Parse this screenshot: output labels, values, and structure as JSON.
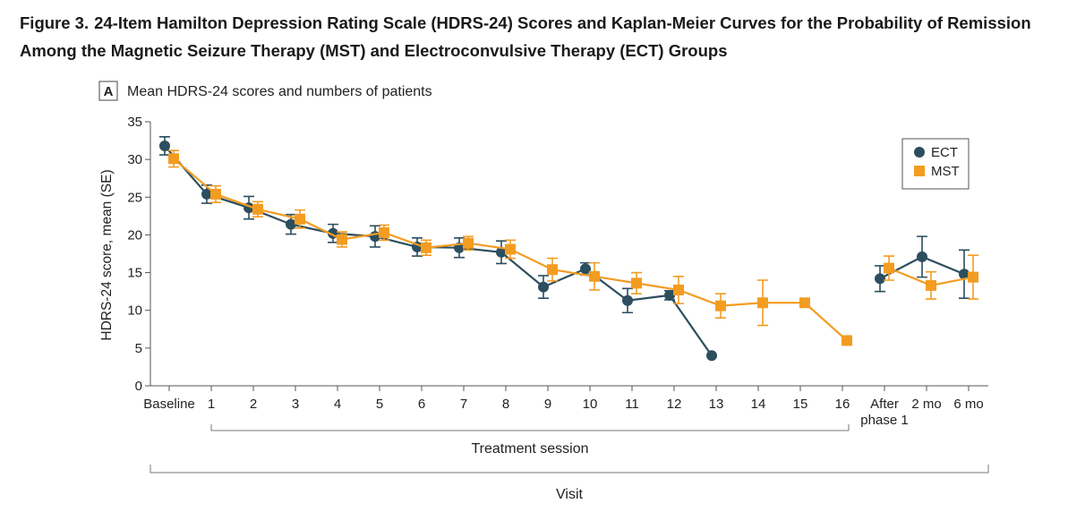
{
  "figure": {
    "prefix": "Figure 3.",
    "title": "24-Item Hamilton Depression Rating Scale (HDRS-24) Scores and Kaplan-Meier Curves for the Probability of Remission Among the Magnetic Seizure Therapy (MST) and Electroconvulsive Therapy (ECT) Groups"
  },
  "chart_data": {
    "type": "line",
    "panel": "A",
    "title": "Mean HDRS-24 scores and numbers of patients",
    "ylabel": "HDRS-24 score, mean (SE)",
    "xlabel": "Visit",
    "ylim": [
      0,
      35
    ],
    "yticks": [
      0,
      5,
      10,
      15,
      20,
      25,
      30,
      35
    ],
    "categories": [
      "Baseline",
      "1",
      "2",
      "3",
      "4",
      "5",
      "6",
      "7",
      "8",
      "9",
      "10",
      "11",
      "12",
      "13",
      "14",
      "15",
      "16",
      "After phase 1",
      "2 mo",
      "6 mo"
    ],
    "category_labels": [
      [
        "Baseline"
      ],
      [
        "1"
      ],
      [
        "2"
      ],
      [
        "3"
      ],
      [
        "4"
      ],
      [
        "5"
      ],
      [
        "6"
      ],
      [
        "7"
      ],
      [
        "8"
      ],
      [
        "9"
      ],
      [
        "10"
      ],
      [
        "11"
      ],
      [
        "12"
      ],
      [
        "13"
      ],
      [
        "14"
      ],
      [
        "15"
      ],
      [
        "16"
      ],
      [
        "After",
        "phase 1"
      ],
      [
        "2 mo"
      ],
      [
        "6 mo"
      ]
    ],
    "groups": [
      {
        "label": "Treatment session",
        "from": 1,
        "to": 16
      }
    ],
    "grid": false,
    "legend": {
      "position": "top-right"
    },
    "series": [
      {
        "name": "ECT",
        "color": "#2c4e5e",
        "marker": "circle",
        "values": [
          31.8,
          25.4,
          23.6,
          21.4,
          20.2,
          19.8,
          18.4,
          18.3,
          17.7,
          13.1,
          15.5,
          11.3,
          12.0,
          4.0,
          null,
          null,
          null,
          14.2,
          17.1,
          14.8
        ],
        "se": [
          1.2,
          1.2,
          1.5,
          1.3,
          1.2,
          1.4,
          1.2,
          1.3,
          1.5,
          1.5,
          0.8,
          1.6,
          0.6,
          0.0,
          null,
          null,
          null,
          1.7,
          2.7,
          3.2
        ],
        "segments": [
          [
            0,
            13
          ],
          [
            17,
            19
          ]
        ]
      },
      {
        "name": "MST",
        "color": "#f39c22",
        "marker": "square",
        "values": [
          30.1,
          25.4,
          23.4,
          22.1,
          19.4,
          20.3,
          18.3,
          18.9,
          18.1,
          15.4,
          14.5,
          13.6,
          12.7,
          10.6,
          11.0,
          11.0,
          6.0,
          15.6,
          13.3,
          14.4
        ],
        "se": [
          1.1,
          1.1,
          1.0,
          1.2,
          1.0,
          1.0,
          1.0,
          0.9,
          1.2,
          1.5,
          1.8,
          1.4,
          1.8,
          1.6,
          3.0,
          0.0,
          0.0,
          1.6,
          1.8,
          2.9
        ],
        "segments": [
          [
            0,
            16
          ],
          [
            17,
            19
          ]
        ]
      }
    ]
  }
}
